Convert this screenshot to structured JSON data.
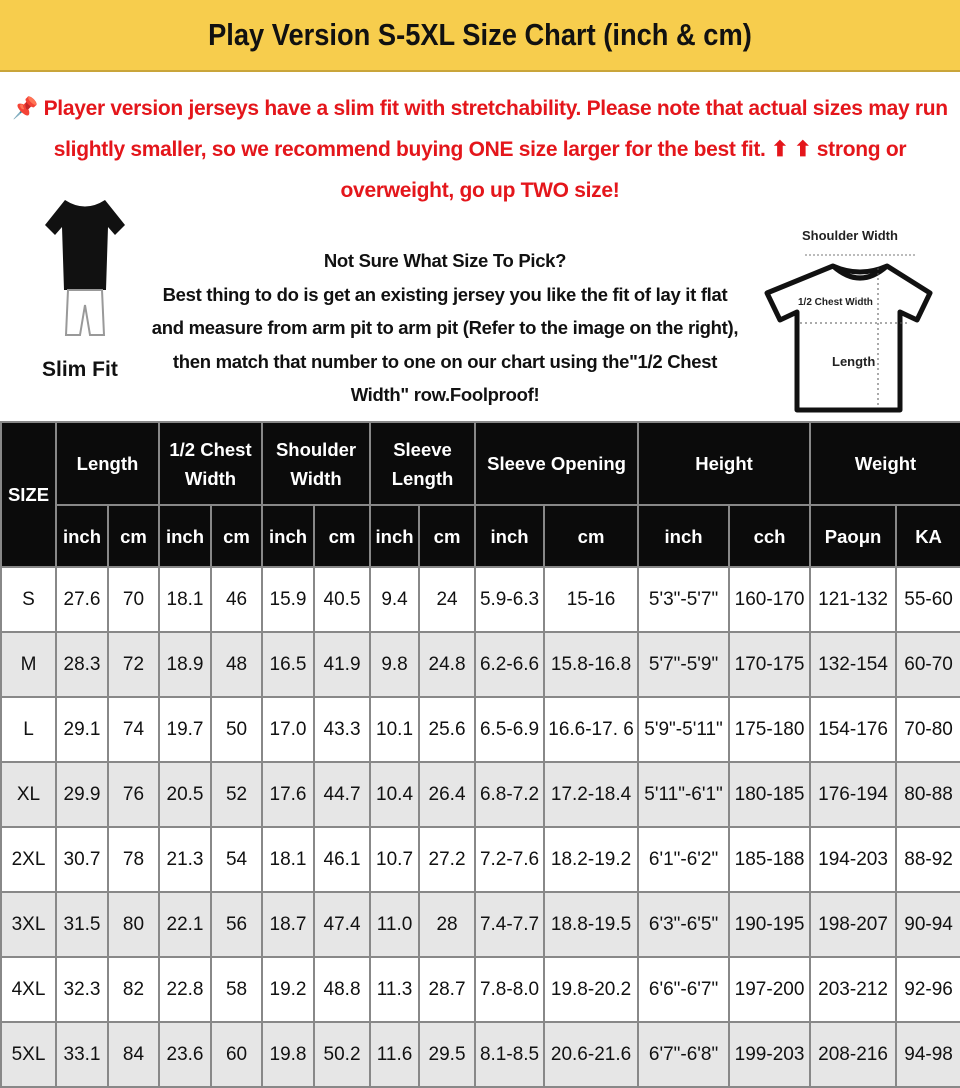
{
  "title": "Play Version S-5XL Size Chart (inch & cm)",
  "notice": {
    "icon": "pushpin-icon",
    "text": "Player version jerseys have a slim fit with stretchability. Please note that actual sizes may run slightly smaller, so we recommend buying ONE size larger for the best fit. ⬆ ⬆ strong or overweight, go up TWO size!",
    "color": "#e4161b"
  },
  "slim_fit_label": "Slim Fit",
  "advice": {
    "heading": "Not Sure What Size To Pick?",
    "body": "Best thing to do is get an existing jersey you like the fit of lay it flat and measure from arm pit to arm pit (Refer to the image on the right), then match that number to one on our chart using the\"1/2 Chest Width\" row.Foolproof!"
  },
  "diagram": {
    "shoulder": "Shoulder Width",
    "chest": "1/2 Chest Width",
    "length": "Length"
  },
  "table": {
    "size_header": "SIZE",
    "groups": [
      "Length",
      "1/2 Chest Width",
      "Shoulder Width",
      "Sleeve Length",
      "Sleeve Opening",
      "Height",
      "Weight"
    ],
    "units": [
      "inch",
      "cm",
      "inch",
      "cm",
      "inch",
      "cm",
      "inch",
      "cm",
      "inch",
      "cm",
      "inch",
      "cch",
      "Paoμn",
      "KA"
    ],
    "rows": [
      [
        "S",
        "27.6",
        "70",
        "18.1",
        "46",
        "15.9",
        "40.5",
        "9.4",
        "24",
        "5.9-6.3",
        "15-16",
        "5'3\"-5'7\"",
        "160-170",
        "121-132",
        "55-60"
      ],
      [
        "M",
        "28.3",
        "72",
        "18.9",
        "48",
        "16.5",
        "41.9",
        "9.8",
        "24.8",
        "6.2-6.6",
        "15.8-16.8",
        "5'7\"-5'9\"",
        "170-175",
        "132-154",
        "60-70"
      ],
      [
        "L",
        "29.1",
        "74",
        "19.7",
        "50",
        "17.0",
        "43.3",
        "10.1",
        "25.6",
        "6.5-6.9",
        "16.6-17. 6",
        "5'9\"-5'11\"",
        "175-180",
        "154-176",
        "70-80"
      ],
      [
        "XL",
        "29.9",
        "76",
        "20.5",
        "52",
        "17.6",
        "44.7",
        "10.4",
        "26.4",
        "6.8-7.2",
        "17.2-18.4",
        "5'11\"-6'1\"",
        "180-185",
        "176-194",
        "80-88"
      ],
      [
        "2XL",
        "30.7",
        "78",
        "21.3",
        "54",
        "18.1",
        "46.1",
        "10.7",
        "27.2",
        "7.2-7.6",
        "18.2-19.2",
        "6'1\"-6'2\"",
        "185-188",
        "194-203",
        "88-92"
      ],
      [
        "3XL",
        "31.5",
        "80",
        "22.1",
        "56",
        "18.7",
        "47.4",
        "11.0",
        "28",
        "7.4-7.7",
        "18.8-19.5",
        "6'3\"-6'5\"",
        "190-195",
        "198-207",
        "90-94"
      ],
      [
        "4XL",
        "32.3",
        "82",
        "22.8",
        "58",
        "19.2",
        "48.8",
        "11.3",
        "28.7",
        "7.8-8.0",
        "19.8-20.2",
        "6'6\"-6'7\"",
        "197-200",
        "203-212",
        "92-96"
      ],
      [
        "5XL",
        "33.1",
        "84",
        "23.6",
        "60",
        "19.8",
        "50.2",
        "11.6",
        "29.5",
        "8.1-8.5",
        "20.6-21.6",
        "6'7\"-6'8\"",
        "199-203",
        "208-216",
        "94-98"
      ]
    ]
  }
}
